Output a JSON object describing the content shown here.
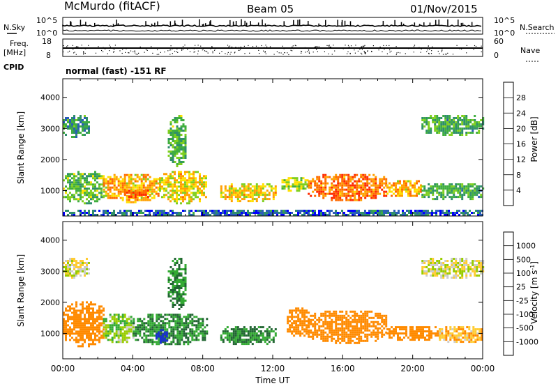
{
  "header": {
    "station": "McMurdo (fitACF)",
    "beam": "Beam 05",
    "date": "01/Nov/2015"
  },
  "info_panels": {
    "nsky_label": "N.Sky",
    "nsky_ticks": [
      "10^5",
      "10^0"
    ],
    "nsearch_label": "N.Search",
    "nsearch_ticks": [
      "10^5",
      "10^0"
    ],
    "freq_label": "Freq.",
    "freq_unit": "[MHz]",
    "freq_ticks": [
      "18",
      "8"
    ],
    "nave_label": "Nave",
    "nave_ticks": [
      "60",
      "0"
    ],
    "cpid_label": "CPID",
    "cpid_text": "normal (fast) -151 RF"
  },
  "colors": {
    "power_scale": [
      "#0000ff",
      "#2a5db8",
      "#2f8f6a",
      "#3fae3f",
      "#7fcf1f",
      "#ffe000",
      "#ffa000",
      "#ff6a00",
      "#ff2a00"
    ],
    "velocity_scale": [
      "#ff0000",
      "#ff4a00",
      "#ff8a00",
      "#ffcc33",
      "#cccccc",
      "#99cc00",
      "#33aa33",
      "#226633",
      "#2244aa",
      "#1a33cc"
    ]
  },
  "chart_data": [
    {
      "type": "heatmap",
      "name": "power",
      "ylabel": "Slant Range [km]",
      "xlabel": "",
      "xlim": [
        0,
        24
      ],
      "ylim": [
        180,
        4600
      ],
      "yticks": [
        "1000",
        "2000",
        "3000",
        "4000"
      ],
      "colorbar_label": "Power [dB]",
      "colorbar_ticks": [
        "4",
        "8",
        "12",
        "16",
        "20",
        "24",
        "28"
      ],
      "colorbar_range": [
        0,
        32
      ],
      "blobs": [
        {
          "x0": 0.0,
          "x1": 2.3,
          "y0": 600,
          "y1": 1700,
          "v": 14
        },
        {
          "x0": 2.3,
          "x1": 5.5,
          "y0": 650,
          "y1": 1600,
          "v": 22
        },
        {
          "x0": 3.5,
          "x1": 5.0,
          "y0": 800,
          "y1": 1100,
          "v": 28
        },
        {
          "x0": 5.5,
          "x1": 8.2,
          "y0": 600,
          "y1": 1700,
          "v": 20
        },
        {
          "x0": 6.0,
          "x1": 7.0,
          "y0": 1800,
          "y1": 3500,
          "v": 13
        },
        {
          "x0": 9.0,
          "x1": 12.2,
          "y0": 650,
          "y1": 1300,
          "v": 20
        },
        {
          "x0": 12.5,
          "x1": 14.0,
          "y0": 1000,
          "y1": 1500,
          "v": 16
        },
        {
          "x0": 14.0,
          "x1": 18.5,
          "y0": 700,
          "y1": 1600,
          "v": 26
        },
        {
          "x0": 18.5,
          "x1": 20.5,
          "y0": 800,
          "y1": 1400,
          "v": 22
        },
        {
          "x0": 20.5,
          "x1": 24.0,
          "y0": 700,
          "y1": 1300,
          "v": 12
        },
        {
          "x0": 0.0,
          "x1": 1.5,
          "y0": 2700,
          "y1": 3500,
          "v": 10
        },
        {
          "x0": 20.5,
          "x1": 24.0,
          "y0": 2800,
          "y1": 3500,
          "v": 12
        },
        {
          "x0": 0.0,
          "x1": 24.0,
          "y0": 200,
          "y1": 450,
          "v": 6
        }
      ]
    },
    {
      "type": "heatmap",
      "name": "velocity",
      "ylabel": "Slant Range [km]",
      "xlabel": "Time UT",
      "xlim": [
        0,
        24
      ],
      "ylim": [
        180,
        4600
      ],
      "xticks": [
        "00:00",
        "04:00",
        "08:00",
        "12:00",
        "16:00",
        "20:00",
        "00:00"
      ],
      "yticks": [
        "1000",
        "2000",
        "3000",
        "4000"
      ],
      "colorbar_label": "Velocity [m s",
      "colorbar_unit_sup": "-1",
      "colorbar_ticks": [
        "1000",
        "500",
        "100",
        "25",
        "-25",
        "-100",
        "-500",
        "-1000"
      ],
      "blobs": [
        {
          "x0": 0.0,
          "x1": 2.3,
          "y0": 600,
          "y1": 2100,
          "v": -300
        },
        {
          "x0": 2.3,
          "x1": 4.0,
          "y0": 700,
          "y1": 1700,
          "v": 80
        },
        {
          "x0": 4.0,
          "x1": 8.2,
          "y0": 650,
          "y1": 1700,
          "v": 300
        },
        {
          "x0": 5.3,
          "x1": 5.9,
          "y0": 700,
          "y1": 1200,
          "v": 1000
        },
        {
          "x0": 6.0,
          "x1": 7.0,
          "y0": 1800,
          "y1": 3500,
          "v": 300
        },
        {
          "x0": 9.0,
          "x1": 12.2,
          "y0": 650,
          "y1": 1300,
          "v": 300
        },
        {
          "x0": 12.8,
          "x1": 14.0,
          "y0": 900,
          "y1": 1900,
          "v": -400
        },
        {
          "x0": 14.0,
          "x1": 18.5,
          "y0": 700,
          "y1": 1800,
          "v": -400
        },
        {
          "x0": 18.5,
          "x1": 21.5,
          "y0": 800,
          "y1": 1300,
          "v": -400
        },
        {
          "x0": 21.5,
          "x1": 24.0,
          "y0": 700,
          "y1": 1300,
          "v": -80
        },
        {
          "x0": 0.0,
          "x1": 1.5,
          "y0": 2800,
          "y1": 3500,
          "v": 0
        },
        {
          "x0": 20.5,
          "x1": 24.0,
          "y0": 2800,
          "y1": 3500,
          "v": 0
        }
      ]
    }
  ]
}
